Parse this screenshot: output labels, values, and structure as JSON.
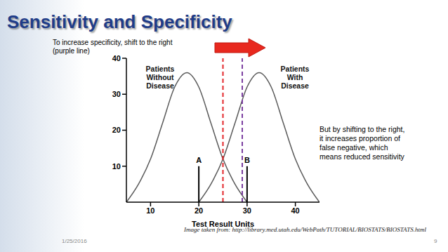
{
  "chart_data": {
    "type": "line",
    "title": "Sensitivity and Specificity",
    "x": [
      5,
      7.5,
      10,
      12.5,
      15,
      17.5,
      20,
      22.5,
      25,
      27.5,
      30,
      32.5,
      35,
      37.5,
      40,
      42.5,
      45
    ],
    "series": [
      {
        "name": "Patients Without Disease",
        "color": "#5a5a5a",
        "values": [
          0,
          5,
          12,
          22,
          32,
          36,
          32,
          22,
          12,
          5,
          0,
          null,
          null,
          null,
          null,
          null,
          null
        ]
      },
      {
        "name": "Patients With Disease",
        "color": "#5a5a5a",
        "values": [
          null,
          null,
          null,
          null,
          null,
          null,
          0,
          5,
          12,
          22,
          32,
          36,
          32,
          22,
          12,
          5,
          0
        ]
      }
    ],
    "xlim": [
      5,
      45
    ],
    "xticks": [
      10,
      20,
      30,
      40
    ],
    "ylim": [
      0,
      40
    ],
    "yticks": [
      10,
      20,
      30,
      40
    ],
    "x_label": "Test Result Units",
    "thresholds": [
      {
        "x": 25,
        "color": "#e3262b",
        "line_style": "dashed"
      },
      {
        "x": 29,
        "color": "#7b3fa0",
        "line_style": "dashed"
      }
    ],
    "markers": [
      {
        "label": "A",
        "x": 20,
        "y": 10
      },
      {
        "label": "B",
        "x": 30,
        "y": 10
      }
    ],
    "annotations": {
      "top_left": [
        "To increase specificity, shift to the right",
        "(purple line)"
      ],
      "right": [
        "But by shifting to the right,",
        "it increases proportion of",
        "false negative, which",
        "means reduced sensitivity"
      ]
    },
    "source": "Image taken from: http://library.med.utah.edu/WebPath/TUTORIAL/BIOSTATS/BIOSTATS.html",
    "date": "1/25/2016",
    "slide_number": 9
  }
}
